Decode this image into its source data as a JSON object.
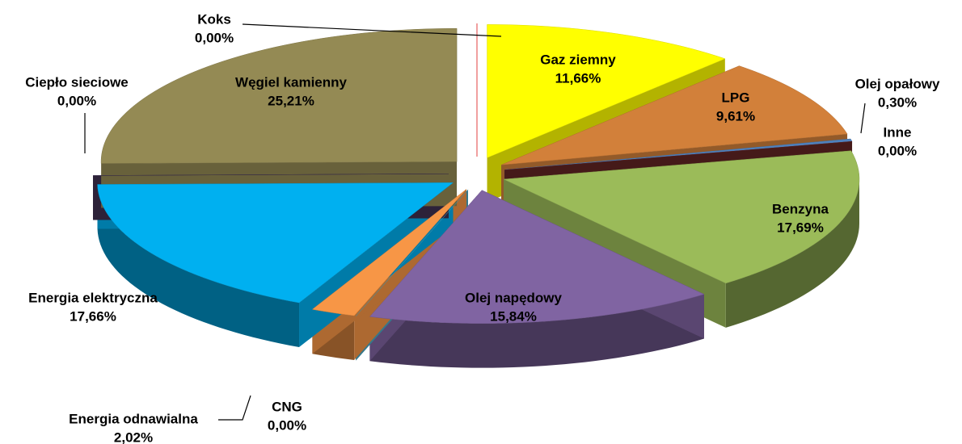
{
  "chart_data": {
    "type": "pie",
    "categories": [
      "Gaz ziemny",
      "LPG",
      "Olej opałowy",
      "Inne",
      "Benzyna",
      "Olej napędowy",
      "CNG",
      "Energia odnawialna",
      "Energia elektryczna",
      "Ciepło sieciowe",
      "Węgiel kamienny",
      "Koks"
    ],
    "values": [
      11.66,
      9.61,
      0.3,
      0,
      17.69,
      15.84,
      0,
      2.02,
      17.66,
      0,
      25.21,
      0
    ],
    "value_labels": [
      "11,66%",
      "9,61%",
      "0,30%",
      "0,00%",
      "17,69%",
      "15,84%",
      "0,00%",
      "2,02%",
      "17,66%",
      "0,00%",
      "25,21%",
      "0,00%"
    ],
    "colors": [
      "#ffff00",
      "#d2803a",
      "#4f81bd",
      "#632523",
      "#9bbb59",
      "#8064a2",
      "#4bacc6",
      "#f79646",
      "#00b0f0",
      "#403152",
      "#948a54",
      "#ff0000"
    ]
  }
}
